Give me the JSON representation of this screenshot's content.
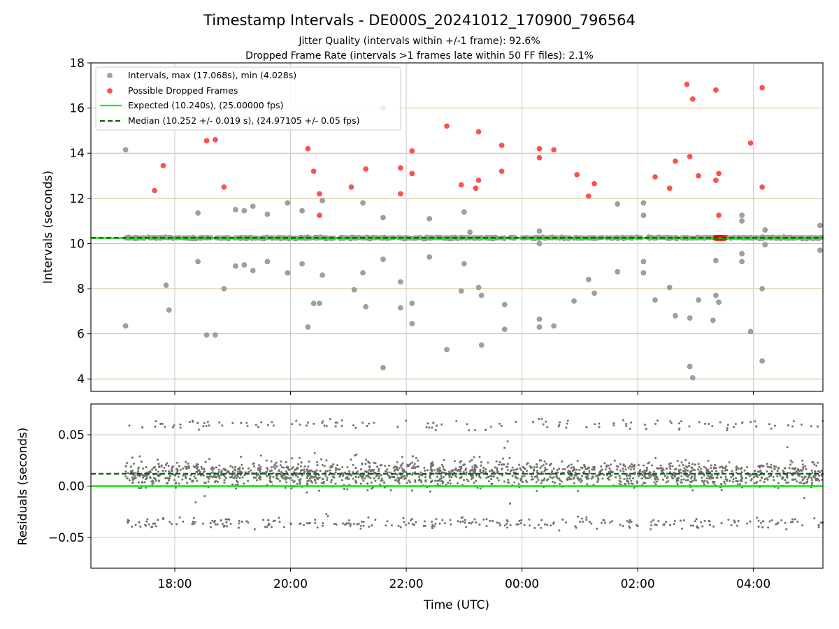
{
  "figure": {
    "title": "Timestamp Intervals - DE000S_20241012_170900_796564",
    "subtitle_1": "Jitter Quality (intervals within +/-1 frame): 92.6%",
    "subtitle_2": "Dropped Frame Rate (intervals >1 frames late within 50 FF files): 2.1%"
  },
  "colors": {
    "intervals": "#a0a0a0",
    "dropped": "#ff4040",
    "expected": "#00ee00",
    "median": "#006400",
    "residuals": "#707070",
    "hgrid_top": "#d4bf80",
    "grid": "#c8c8c8"
  },
  "chart_data": [
    {
      "type": "scatter",
      "panel": "top",
      "ylabel": "Intervals (seconds)",
      "xlabel": "",
      "x_unit": "hours relative to 2024-10-12 00:00 UTC",
      "xlim": [
        16.55,
        29.2
      ],
      "ylim": [
        3.45,
        18.0
      ],
      "yticks": [
        4,
        6,
        8,
        10,
        12,
        14,
        16,
        18
      ],
      "ytick_labels": [
        "4",
        "6",
        "8",
        "10",
        "12",
        "14",
        "16",
        "18"
      ],
      "xticks": [
        18,
        20,
        22,
        24,
        26,
        28
      ],
      "grid": true,
      "legend_position": "top-left",
      "legend": [
        "Intervals, max (17.068s), min (4.028s)",
        "Possible Dropped Frames",
        "Expected (10.240s), (25.00000 fps)",
        "Median (10.252 +/- 0.019 s), (24.97105 +/- 0.05 fps)"
      ],
      "expected_value": 10.24,
      "median_value": 10.252,
      "band_x_range": [
        17.15,
        29.2
      ],
      "band_center": 10.25,
      "series": [
        {
          "name": "Intervals, max (17.068s), min (4.028s)",
          "points": [
            [
              17.15,
              14.15
            ],
            [
              17.15,
              6.35
            ],
            [
              17.85,
              8.15
            ],
            [
              17.9,
              7.05
            ],
            [
              18.4,
              11.35
            ],
            [
              18.4,
              9.2
            ],
            [
              18.55,
              5.95
            ],
            [
              18.7,
              5.95
            ],
            [
              18.85,
              8.0
            ],
            [
              19.05,
              11.5
            ],
            [
              19.05,
              9.0
            ],
            [
              19.2,
              11.45
            ],
            [
              19.2,
              9.05
            ],
            [
              19.35,
              11.65
            ],
            [
              19.35,
              8.8
            ],
            [
              19.6,
              11.3
            ],
            [
              19.6,
              9.2
            ],
            [
              19.95,
              11.8
            ],
            [
              19.95,
              8.7
            ],
            [
              20.2,
              11.45
            ],
            [
              20.2,
              9.1
            ],
            [
              20.3,
              6.3
            ],
            [
              20.4,
              7.35
            ],
            [
              20.5,
              7.35
            ],
            [
              20.55,
              11.9
            ],
            [
              20.55,
              8.6
            ],
            [
              21.1,
              7.95
            ],
            [
              21.25,
              11.8
            ],
            [
              21.25,
              8.7
            ],
            [
              21.3,
              7.2
            ],
            [
              21.6,
              11.15
            ],
            [
              21.6,
              9.3
            ],
            [
              21.6,
              4.5
            ],
            [
              21.9,
              8.3
            ],
            [
              21.9,
              7.15
            ],
            [
              22.1,
              7.35
            ],
            [
              22.1,
              6.45
            ],
            [
              22.4,
              11.1
            ],
            [
              22.4,
              9.4
            ],
            [
              22.7,
              5.3
            ],
            [
              23.0,
              11.4
            ],
            [
              23.0,
              9.1
            ],
            [
              22.95,
              7.9
            ],
            [
              23.1,
              10.5
            ],
            [
              23.25,
              8.05
            ],
            [
              23.3,
              7.7
            ],
            [
              23.3,
              5.5
            ],
            [
              23.7,
              7.3
            ],
            [
              23.7,
              6.2
            ],
            [
              24.3,
              10.55
            ],
            [
              24.3,
              10.0
            ],
            [
              24.3,
              6.65
            ],
            [
              24.3,
              6.3
            ],
            [
              24.55,
              6.35
            ],
            [
              24.9,
              7.45
            ],
            [
              25.15,
              8.4
            ],
            [
              25.25,
              7.8
            ],
            [
              25.65,
              11.75
            ],
            [
              25.65,
              8.75
            ],
            [
              26.1,
              11.8
            ],
            [
              26.1,
              11.25
            ],
            [
              26.1,
              9.2
            ],
            [
              26.1,
              8.7
            ],
            [
              26.3,
              7.5
            ],
            [
              26.55,
              8.05
            ],
            [
              26.65,
              6.8
            ],
            [
              26.9,
              6.7
            ],
            [
              26.9,
              4.55
            ],
            [
              26.95,
              4.05
            ],
            [
              27.05,
              7.5
            ],
            [
              27.3,
              6.6
            ],
            [
              27.35,
              9.25
            ],
            [
              27.35,
              7.7
            ],
            [
              27.4,
              7.4
            ],
            [
              27.8,
              11.25
            ],
            [
              27.8,
              11.0
            ],
            [
              27.8,
              9.55
            ],
            [
              27.8,
              9.2
            ],
            [
              27.95,
              6.1
            ],
            [
              28.2,
              10.6
            ],
            [
              28.2,
              9.95
            ],
            [
              28.15,
              8.0
            ],
            [
              28.15,
              4.8
            ],
            [
              29.15,
              10.8
            ],
            [
              29.15,
              9.7
            ]
          ]
        },
        {
          "name": "Possible Dropped Frames",
          "points": [
            [
              17.65,
              12.35
            ],
            [
              17.8,
              13.45
            ],
            [
              18.55,
              14.55
            ],
            [
              18.7,
              14.6
            ],
            [
              18.85,
              12.5
            ],
            [
              20.3,
              14.2
            ],
            [
              20.4,
              13.2
            ],
            [
              20.5,
              12.2
            ],
            [
              20.5,
              11.25
            ],
            [
              21.05,
              12.5
            ],
            [
              21.3,
              13.3
            ],
            [
              21.6,
              16.0
            ],
            [
              21.9,
              13.35
            ],
            [
              21.9,
              12.2
            ],
            [
              22.1,
              14.1
            ],
            [
              22.1,
              13.1
            ],
            [
              22.7,
              15.2
            ],
            [
              22.95,
              12.6
            ],
            [
              23.2,
              12.45
            ],
            [
              23.25,
              14.95
            ],
            [
              23.25,
              12.8
            ],
            [
              23.65,
              14.35
            ],
            [
              23.65,
              13.2
            ],
            [
              24.3,
              14.2
            ],
            [
              24.3,
              13.8
            ],
            [
              24.55,
              14.15
            ],
            [
              24.95,
              13.05
            ],
            [
              25.15,
              12.1
            ],
            [
              25.25,
              12.65
            ],
            [
              26.3,
              12.95
            ],
            [
              26.55,
              12.45
            ],
            [
              26.65,
              13.65
            ],
            [
              26.85,
              17.05
            ],
            [
              26.95,
              16.4
            ],
            [
              26.9,
              13.85
            ],
            [
              27.05,
              13.0
            ],
            [
              27.35,
              16.8
            ],
            [
              27.35,
              12.8
            ],
            [
              27.4,
              13.1
            ],
            [
              27.4,
              11.25
            ],
            [
              27.95,
              14.45
            ],
            [
              28.15,
              16.9
            ],
            [
              28.15,
              12.5
            ]
          ],
          "dense_cluster": {
            "x_range": [
              27.35,
              27.5
            ],
            "y": 10.25
          }
        }
      ]
    },
    {
      "type": "scatter",
      "panel": "bottom",
      "ylabel": "Residuals (seconds)",
      "xlabel": "Time (UTC)",
      "x_unit": "hours relative to 2024-10-12 00:00 UTC",
      "xlim": [
        16.55,
        29.2
      ],
      "ylim": [
        -0.08,
        0.08
      ],
      "yticks": [
        -0.05,
        0.0,
        0.05
      ],
      "ytick_labels": [
        "−0.05",
        "0.00",
        "0.05"
      ],
      "xticks": [
        18,
        20,
        22,
        24,
        26,
        28
      ],
      "xtick_labels": [
        "18:00",
        "20:00",
        "22:00",
        "00:00",
        "02:00",
        "04:00"
      ],
      "grid": true,
      "expected_value": 0.0,
      "median_value": 0.012,
      "residual_clusters": [
        {
          "center": 0.012,
          "spread": 0.012,
          "share": 0.8
        },
        {
          "center": 0.06,
          "spread": 0.005,
          "share": 0.06
        },
        {
          "center": -0.036,
          "spread": 0.006,
          "share": 0.14
        }
      ]
    }
  ]
}
